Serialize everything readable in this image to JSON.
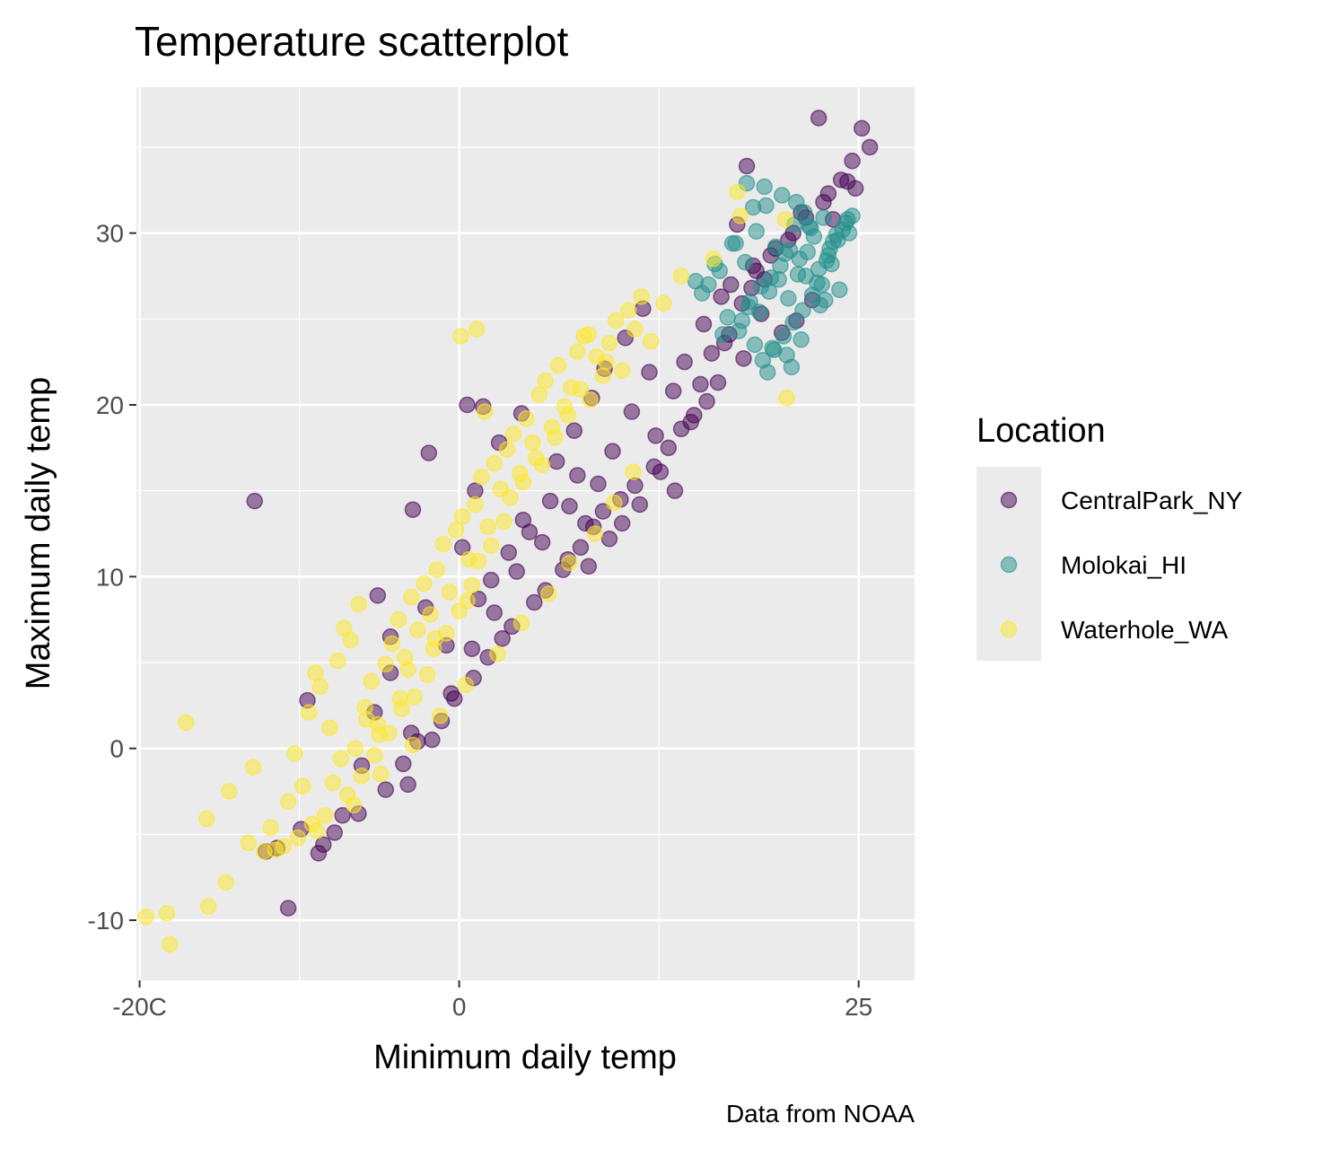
{
  "chart_data": {
    "type": "scatter",
    "title": "Temperature scatterplot",
    "xlabel": "Minimum daily temp",
    "ylabel": "Maximum daily temp",
    "caption": "Data from NOAA",
    "xlim": [
      -20.2,
      28.5
    ],
    "ylim": [
      -13.5,
      38.5
    ],
    "x_ticks": [
      -20,
      0,
      25
    ],
    "x_tick_labels": [
      "-20C",
      "0",
      "25"
    ],
    "x_minor_ticks": [
      -10,
      12.5
    ],
    "y_ticks": [
      -10,
      0,
      10,
      20,
      30
    ],
    "y_tick_labels": [
      "-10",
      "0",
      "10",
      "20",
      "30"
    ],
    "y_minor_ticks": [
      -5,
      5,
      15,
      25,
      35
    ],
    "grid": true,
    "point_alpha": 0.5,
    "legend": {
      "title": "Location",
      "placement": "right"
    },
    "series": [
      {
        "name": "CentralPark_NY",
        "color": "#440154",
        "x": [
          -12.8,
          -9.5,
          -10.7,
          -8.8,
          -5.1,
          -4.3,
          -1.9,
          -2.9,
          -3.0,
          0.5,
          1.5,
          3.9,
          2.5,
          1.0,
          0.2,
          -2.1,
          -4.3,
          -5.3,
          -6.1,
          -7.3,
          -3.2,
          -1.7,
          -0.5,
          0.8,
          2.2,
          3.6,
          4.4,
          5.7,
          6.1,
          7.2,
          8.3,
          9.1,
          10.4,
          11.5,
          6.8,
          7.9,
          8.7,
          9.6,
          10.8,
          11.9,
          12.3,
          13.4,
          14.1,
          15.3,
          16.4,
          17.0,
          12.6,
          13.5,
          11.3,
          10.2,
          9.4,
          8.1,
          15.8,
          16.9,
          17.7,
          18.3,
          19.5,
          20.6,
          21.7,
          22.8,
          23.9,
          24.6,
          25.7,
          25.2,
          24.3,
          23.1,
          22.5,
          21.4,
          20.9,
          19.8,
          18.6,
          18.0,
          17.4,
          16.2,
          15.5,
          14.7,
          13.9,
          13.1,
          12.2,
          11.0,
          10.1,
          9.0,
          8.4,
          7.6,
          6.5,
          5.4,
          4.7,
          3.3,
          2.7,
          1.8,
          0.9,
          -0.3,
          -1.1,
          -2.6,
          -3.5,
          -4.6,
          -6.3,
          -7.8,
          -8.5,
          -9.9,
          -11.4,
          -12.1,
          14.5,
          15.1,
          16.6,
          17.8,
          18.9,
          22.1,
          23.4,
          24.8,
          5.2,
          6.9,
          7.4,
          4.0,
          3.1,
          2.0,
          1.2,
          -0.8,
          20.2,
          21.1,
          19.1,
          18.4
        ],
        "y": [
          14.4,
          2.8,
          -9.3,
          -6.1,
          8.9,
          6.5,
          17.2,
          13.9,
          0.9,
          20.0,
          19.9,
          19.5,
          17.8,
          15.0,
          11.7,
          8.2,
          4.4,
          2.1,
          -1.0,
          -3.9,
          -2.1,
          0.5,
          3.2,
          5.8,
          7.9,
          10.3,
          12.6,
          14.4,
          16.7,
          18.5,
          20.4,
          22.1,
          23.9,
          25.6,
          11.0,
          13.1,
          15.4,
          17.3,
          19.6,
          21.9,
          18.2,
          20.8,
          22.5,
          24.7,
          26.3,
          27.0,
          16.1,
          15.0,
          14.2,
          13.1,
          12.2,
          10.6,
          23.0,
          24.1,
          25.9,
          26.8,
          28.7,
          29.6,
          30.9,
          31.8,
          33.1,
          34.2,
          35.0,
          36.1,
          33.0,
          32.3,
          36.7,
          31.2,
          30.0,
          29.1,
          27.8,
          33.9,
          30.5,
          21.3,
          20.2,
          19.4,
          18.6,
          17.5,
          16.4,
          15.3,
          14.5,
          13.8,
          12.9,
          11.7,
          10.4,
          9.2,
          8.5,
          7.1,
          6.4,
          5.3,
          4.1,
          2.9,
          1.6,
          0.4,
          -0.9,
          -2.4,
          -3.8,
          -4.9,
          -5.6,
          -4.7,
          -5.8,
          -6.0,
          19.0,
          21.2,
          23.6,
          22.7,
          25.3,
          26.1,
          30.8,
          32.6,
          12.0,
          14.1,
          15.9,
          13.3,
          11.4,
          9.8,
          8.7,
          6.0,
          24.2,
          24.9,
          27.3,
          28.1
        ]
      },
      {
        "name": "Molokai_HI",
        "color": "#21908C",
        "x": [
          14.8,
          15.6,
          16.3,
          17.1,
          17.9,
          18.6,
          19.2,
          19.8,
          20.4,
          21.0,
          21.6,
          22.2,
          22.8,
          23.4,
          24.0,
          24.6,
          18.1,
          18.9,
          19.5,
          20.1,
          20.7,
          21.3,
          21.9,
          22.5,
          23.1,
          23.7,
          24.3,
          16.8,
          17.5,
          18.2,
          18.8,
          19.4,
          20.0,
          20.6,
          21.2,
          21.8,
          22.4,
          23.0,
          23.6,
          24.2,
          19.0,
          19.7,
          20.3,
          20.9,
          21.5,
          22.1,
          22.7,
          23.3,
          15.2,
          16.0,
          17.3,
          18.4,
          19.1,
          20.2,
          21.1,
          22.0,
          23.2,
          24.4,
          17.7,
          18.5,
          19.3,
          20.5,
          21.4,
          22.6,
          23.8,
          16.5,
          20.8,
          19.6,
          18.0,
          21.7,
          22.9
        ],
        "y": [
          27.2,
          27.0,
          27.8,
          29.4,
          28.3,
          30.1,
          31.6,
          29.2,
          28.8,
          30.5,
          31.2,
          29.8,
          30.9,
          29.5,
          30.2,
          31.0,
          25.7,
          26.9,
          27.4,
          28.1,
          29.0,
          28.5,
          30.4,
          27.9,
          28.7,
          29.6,
          30.8,
          25.1,
          24.3,
          26.0,
          25.4,
          26.6,
          27.3,
          26.2,
          27.6,
          28.9,
          27.1,
          28.4,
          29.9,
          30.6,
          22.6,
          23.2,
          24.0,
          24.8,
          25.5,
          26.4,
          27.0,
          28.2,
          26.5,
          28.2,
          29.4,
          31.5,
          32.7,
          32.2,
          31.8,
          30.3,
          29.1,
          30.0,
          24.9,
          23.5,
          21.9,
          22.9,
          23.8,
          25.8,
          26.7,
          24.1,
          22.2,
          23.3,
          32.9,
          27.5,
          26.1
        ]
      },
      {
        "name": "Waterhole_WA",
        "color": "#FDE725",
        "x": [
          -19.6,
          -18.3,
          -18.1,
          -17.1,
          -15.8,
          -15.7,
          -14.6,
          -14.4,
          -13.2,
          -12.9,
          -11.8,
          -12.2,
          -10.7,
          -11.0,
          -10.3,
          -9.4,
          -9.0,
          -8.7,
          -8.1,
          -7.6,
          -7.2,
          -6.8,
          -6.3,
          -5.9,
          -5.5,
          -5.0,
          -4.6,
          -4.2,
          -3.8,
          -3.4,
          -3.0,
          -2.6,
          -2.2,
          -1.8,
          -1.4,
          -1.0,
          -0.6,
          -0.2,
          0.2,
          0.6,
          1.0,
          1.4,
          1.8,
          2.2,
          2.6,
          3.0,
          3.4,
          3.8,
          4.2,
          4.6,
          5.0,
          5.4,
          5.8,
          6.2,
          6.6,
          7.0,
          7.4,
          7.8,
          8.2,
          8.6,
          9.0,
          9.4,
          9.8,
          10.2,
          10.6,
          11.0,
          11.4,
          12.0,
          12.8,
          13.9,
          15.9,
          17.4,
          17.6,
          20.4,
          20.5,
          0.1,
          1.1,
          1.6,
          8.1,
          5.2,
          -3.7,
          -5.8,
          -7.4,
          -9.8,
          -8.9,
          -6.6,
          -4.9,
          -2.9,
          -1.2,
          0.4,
          2.4,
          3.9,
          5.6,
          6.9,
          8.5,
          9.7,
          10.9,
          -10.1,
          -8.4,
          -7.0,
          -6.1,
          -5.3,
          -4.4,
          -3.6,
          -2.8,
          -2.0,
          -1.6,
          -0.8,
          0.0,
          0.8,
          1.2,
          2.0,
          2.8,
          3.2,
          4.0,
          4.8,
          6.0,
          6.8,
          7.6,
          9.2,
          -11.5,
          -9.2,
          -7.9,
          -6.5,
          -5.1,
          -3.2,
          -1.5,
          0.5
        ],
        "y": [
          -9.8,
          -9.6,
          -11.4,
          1.5,
          -4.1,
          -9.2,
          -7.8,
          -2.5,
          -5.5,
          -1.1,
          -4.6,
          -6.0,
          -3.1,
          -5.7,
          -0.3,
          2.1,
          4.4,
          3.6,
          1.2,
          5.1,
          7.0,
          6.3,
          8.4,
          2.4,
          3.9,
          0.8,
          4.9,
          6.1,
          7.5,
          5.3,
          8.8,
          6.9,
          9.6,
          7.8,
          10.4,
          11.9,
          9.1,
          12.7,
          13.5,
          11.0,
          14.2,
          15.8,
          12.9,
          16.6,
          15.1,
          17.4,
          18.3,
          16.0,
          19.2,
          17.8,
          20.6,
          21.4,
          18.7,
          22.3,
          19.9,
          21.0,
          23.1,
          24.0,
          20.3,
          22.8,
          21.7,
          23.6,
          24.9,
          22.0,
          25.5,
          24.4,
          26.3,
          23.7,
          25.9,
          27.5,
          28.5,
          32.4,
          31.0,
          30.8,
          20.4,
          24.0,
          24.4,
          19.6,
          24.1,
          16.5,
          2.9,
          1.7,
          -0.6,
          -2.2,
          -4.8,
          -3.3,
          -1.5,
          0.2,
          1.9,
          3.7,
          5.5,
          7.3,
          9.0,
          10.8,
          12.5,
          14.3,
          16.1,
          -5.2,
          -3.9,
          -2.7,
          -1.6,
          -0.4,
          0.9,
          2.3,
          3.0,
          4.3,
          5.8,
          6.7,
          8.0,
          9.5,
          10.9,
          11.8,
          13.2,
          14.6,
          15.5,
          16.9,
          18.1,
          19.4,
          20.9,
          22.5,
          -5.9,
          -4.4,
          -2.0,
          0.0,
          1.4,
          4.6,
          6.4,
          8.6
        ]
      }
    ]
  }
}
